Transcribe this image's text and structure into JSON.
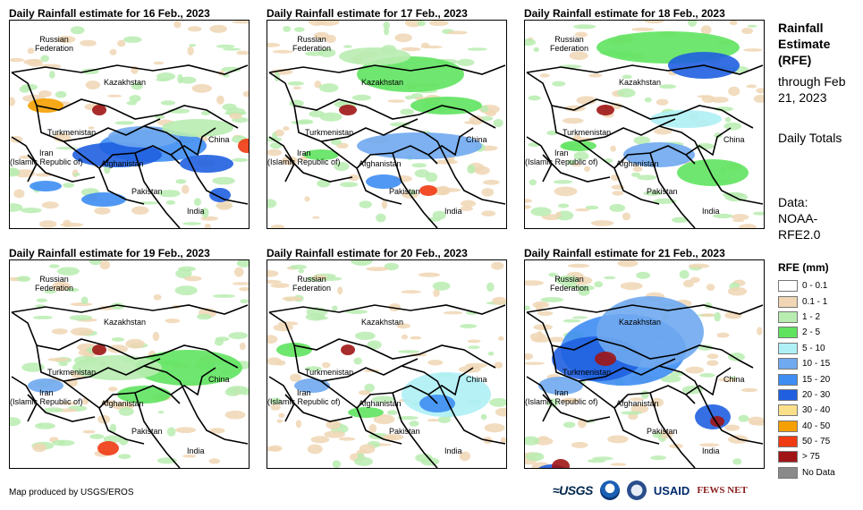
{
  "panels": [
    {
      "title": "Daily Rainfall estimate for 16 Feb., 2023"
    },
    {
      "title": "Daily Rainfall estimate for 17 Feb., 2023"
    },
    {
      "title": "Daily Rainfall estimate for 18 Feb., 2023"
    },
    {
      "title": "Daily Rainfall estimate for 19 Feb., 2023"
    },
    {
      "title": "Daily Rainfall estimate for 20 Feb., 2023"
    },
    {
      "title": "Daily Rainfall estimate for 21 Feb., 2023"
    }
  ],
  "labels": {
    "russia": "Russian\nFederation",
    "kazakhstan": "Kazakhstan",
    "turkmenistan": "Turkmenistan",
    "china": "China",
    "iran": "Iran\n(Islamic Republic of)",
    "afghanistan": "Afghanistan",
    "pakistan": "Pakistan",
    "india": "India"
  },
  "side": {
    "title": "Rainfall Estimate (RFE)",
    "through": "through Feb 21, 2023",
    "daily": "Daily Totals",
    "data_source": "Data: NOAA-RFE2.0"
  },
  "legend": {
    "title": "RFE (mm)",
    "items": [
      {
        "label": "0 - 0.1",
        "color": "#ffffff"
      },
      {
        "label": "0.1 - 1",
        "color": "#f0d6b4"
      },
      {
        "label": "1 - 2",
        "color": "#b8ecb0"
      },
      {
        "label": "2 - 5",
        "color": "#5fe35f"
      },
      {
        "label": "5 - 10",
        "color": "#aef0f5"
      },
      {
        "label": "10 - 15",
        "color": "#6fa9f0"
      },
      {
        "label": "15 - 20",
        "color": "#3d8df2"
      },
      {
        "label": "20 - 30",
        "color": "#1f5fe0"
      },
      {
        "label": "30 - 40",
        "color": "#fbe08a"
      },
      {
        "label": "40 - 50",
        "color": "#f5a000"
      },
      {
        "label": "50 - 75",
        "color": "#ef3a12"
      },
      {
        "label": "> 75",
        "color": "#a01515"
      },
      {
        "label": "No Data",
        "color": "#8a8a8a"
      }
    ]
  },
  "footer": "Map produced by USGS/EROS",
  "logos": {
    "usgs": "≈USGS",
    "usaid": "USAID",
    "fews": "FEWS NET"
  }
}
